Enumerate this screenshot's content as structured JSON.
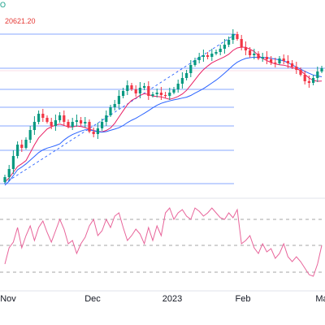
{
  "header": {
    "ohlc_fragment": "O",
    "last_label": "20621.20"
  },
  "colors": {
    "up": "#089981",
    "down": "#f23645",
    "ma_fast": "#e91e63",
    "ma_slow": "#2962ff",
    "fib": "#2962ff",
    "trend": "#2962ff",
    "rsi": "#e8649a",
    "grid": "#888888"
  },
  "chart_data": [
    {
      "type": "candlestick",
      "title": "",
      "x_tick_labels": [
        "Nov",
        "Dec",
        "2023",
        "Feb",
        "Ma"
      ],
      "indicators": [
        "moving average (fast)",
        "moving average (slow)",
        "Fibonacci retracement levels",
        "trend line"
      ],
      "price_label": 20621.2,
      "close_path": [
        218,
        208,
        192,
        178,
        182,
        172,
        160,
        150,
        140,
        145,
        150,
        155,
        148,
        142,
        150,
        156,
        150,
        148,
        152,
        150,
        162,
        165,
        158,
        150,
        142,
        132,
        128,
        118,
        112,
        105,
        110,
        115,
        108,
        106,
        118,
        116,
        114,
        117,
        118,
        114,
        110,
        103,
        96,
        90,
        80,
        74,
        70,
        68,
        70,
        66,
        64,
        60,
        55,
        49,
        42,
        48,
        58,
        62,
        68,
        66,
        72,
        70,
        73,
        77,
        78,
        72,
        75,
        78,
        82,
        86,
        92,
        100,
        102,
        96,
        88,
        84
      ]
    },
    {
      "type": "line",
      "title": "",
      "series": [
        {
          "values": [
            325,
            305,
            298,
            280,
            305,
            290,
            278,
            296,
            280,
            272,
            286,
            298,
            284,
            270,
            282,
            300,
            296,
            312,
            300,
            292,
            278,
            270,
            290,
            284,
            270,
            280,
            266,
            262,
            280,
            296,
            290,
            282,
            288,
            300,
            280,
            296,
            278,
            290,
            262,
            256,
            270,
            262,
            258,
            266,
            270,
            256,
            260,
            266,
            262,
            256,
            262,
            268,
            270,
            262,
            268,
            258,
            300,
            296,
            290,
            305,
            312,
            300,
            310,
            306,
            318,
            312,
            300,
            316,
            322,
            316,
            322,
            330,
            338,
            340,
            325,
            302
          ]
        }
      ],
      "reference_levels": [
        "upper",
        "middle",
        "lower"
      ]
    }
  ]
}
